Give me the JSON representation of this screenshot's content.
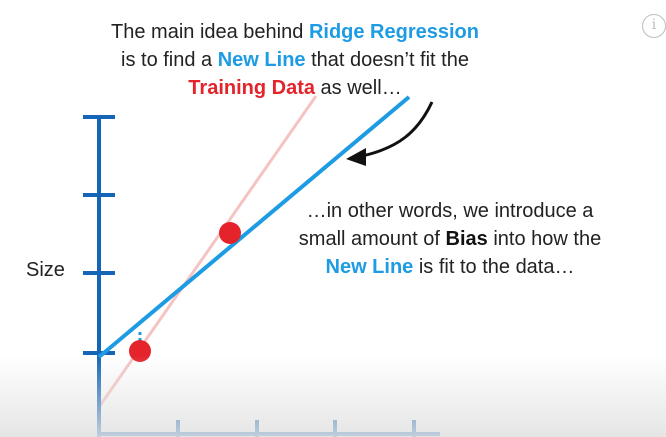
{
  "top_caption": {
    "line1_pre": "The main idea behind ",
    "line1_highlight": "Ridge Regression",
    "line2_pre": "is to find a ",
    "line2_highlight": "New Line",
    "line2_post": " that doesn’t fit the",
    "line3_highlight": "Training Data",
    "line3_post": " as well…"
  },
  "side_caption": {
    "line1": "…in other words, we introduce a",
    "line2_pre": "small amount of ",
    "line2_highlight": "Bias",
    "line2_post": " into how the",
    "line3_highlight": "New Line",
    "line3_post": " is fit to the data…"
  },
  "y_axis_label": "Size",
  "info_icon": "info-circle-icon",
  "colors": {
    "axis": "#1565b7",
    "new_line": "#1d9be3",
    "old_line": "#f6c3c3",
    "point": "#e4232b",
    "highlight_blue": "#1d9be3",
    "highlight_red": "#e4232b"
  }
}
